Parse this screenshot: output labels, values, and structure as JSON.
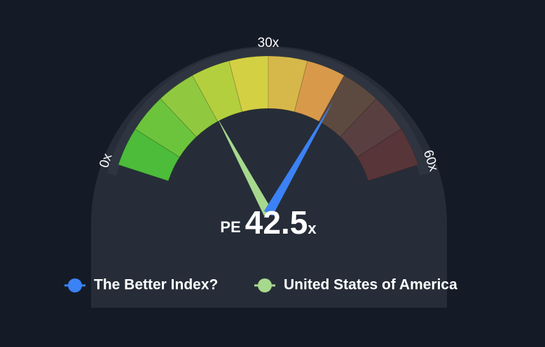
{
  "chart_data": {
    "type": "gauge",
    "metric": "PE",
    "unit": "x",
    "lim": [
      0,
      60
    ],
    "ticks": [
      {
        "value": 0,
        "label": "0x"
      },
      {
        "value": 30,
        "label": "30x"
      },
      {
        "value": 60,
        "label": "60x"
      }
    ],
    "band_colors": [
      "#4cbc3a",
      "#6cc43c",
      "#90c93f",
      "#b4cf3e",
      "#d4d044",
      "#d6b84a",
      "#d89a4a",
      "#5c4a40",
      "#5a3f41",
      "#573539"
    ],
    "series": [
      {
        "name": "The Better Index?",
        "color": "#3b82f6",
        "value": 42.5
      },
      {
        "name": "United States of America",
        "color": "#a6d98e",
        "value": 18.3
      }
    ]
  }
}
